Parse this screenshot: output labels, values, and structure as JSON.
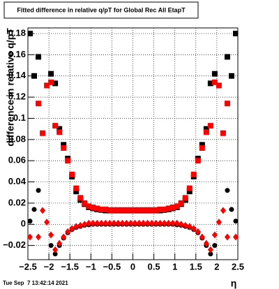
{
  "chart_data": {
    "type": "scatter",
    "title": "Fitted difference in relative q/pT for Global Rec All EtapT",
    "x_label": "η",
    "y_label": "difference in relative q/pT",
    "footer": "Tue Sep  7 13:42:14 2021",
    "x": [
      -2.45,
      -2.35,
      -2.25,
      -2.15,
      -2.05,
      -1.95,
      -1.85,
      -1.75,
      -1.65,
      -1.55,
      -1.45,
      -1.35,
      -1.25,
      -1.15,
      -1.05,
      -0.95,
      -0.85,
      -0.75,
      -0.65,
      -0.55,
      -0.45,
      -0.35,
      -0.25,
      -0.15,
      -0.05,
      0.05,
      0.15,
      0.25,
      0.35,
      0.45,
      0.55,
      0.65,
      0.75,
      0.85,
      0.95,
      1.05,
      1.15,
      1.25,
      1.35,
      1.45,
      1.55,
      1.65,
      1.75,
      1.85,
      1.95,
      2.05,
      2.15,
      2.25,
      2.35,
      2.45
    ],
    "series": [
      {
        "color": "#000000",
        "marker": "square",
        "values": [
          0.18,
          0.14,
          0.158,
          null,
          null,
          0.142,
          0.133,
          0.09,
          0.075,
          0.062,
          0.045,
          0.031,
          0.023,
          0.019,
          0.016,
          0.015,
          0.014,
          0.0135,
          0.013,
          0.013,
          0.013,
          0.013,
          0.013,
          0.013,
          0.013,
          0.013,
          0.013,
          0.013,
          0.013,
          0.013,
          0.013,
          0.013,
          0.0135,
          0.014,
          0.015,
          0.016,
          0.019,
          0.023,
          0.031,
          0.045,
          0.062,
          0.075,
          0.09,
          0.133,
          0.142,
          null,
          null,
          0.158,
          0.14,
          0.18
        ]
      },
      {
        "color": "#ff0000",
        "marker": "square",
        "values": [
          null,
          null,
          0.114,
          0.086,
          0.131,
          0.134,
          0.093,
          0.087,
          0.072,
          0.06,
          0.047,
          0.034,
          0.025,
          0.02,
          0.017,
          0.016,
          0.015,
          0.014,
          0.014,
          0.0135,
          0.0135,
          0.0135,
          0.0135,
          0.0135,
          0.0135,
          0.0135,
          0.0135,
          0.0135,
          0.0135,
          0.0135,
          0.0135,
          0.014,
          0.014,
          0.015,
          0.016,
          0.017,
          0.02,
          0.025,
          0.034,
          0.047,
          0.06,
          0.072,
          0.087,
          0.093,
          0.134,
          0.131,
          0.086,
          0.114,
          null,
          null
        ]
      },
      {
        "color": "#000000",
        "marker": "circle",
        "values": [
          0.003,
          0.014,
          0.032,
          null,
          null,
          -0.02,
          -0.028,
          -0.02,
          -0.013,
          -0.008,
          -0.005,
          -0.003,
          -0.002,
          -0.001,
          -0.0005,
          0,
          0,
          0,
          0,
          0,
          0,
          0,
          0,
          0,
          0,
          0,
          0,
          0,
          0,
          0,
          0,
          0,
          0,
          0,
          0,
          -0.0005,
          -0.001,
          -0.002,
          -0.003,
          -0.005,
          -0.008,
          -0.013,
          -0.02,
          -0.028,
          -0.02,
          null,
          null,
          0.032,
          0.014,
          0.003
        ]
      },
      {
        "color": "#ff0000",
        "marker": "diamond",
        "values": [
          -0.012,
          null,
          -0.012,
          0.013,
          0.002,
          -0.01,
          -0.024,
          -0.018,
          -0.012,
          -0.007,
          -0.004,
          -0.002,
          -0.001,
          0,
          0.001,
          0.001,
          0.001,
          0.001,
          0.001,
          0.001,
          0.001,
          0.001,
          0.001,
          0.001,
          0.001,
          0.001,
          0.001,
          0.001,
          0.001,
          0.001,
          0.001,
          0.001,
          0.001,
          0.001,
          0.001,
          0.001,
          0,
          -0.001,
          -0.002,
          -0.004,
          -0.007,
          -0.012,
          -0.018,
          -0.024,
          -0.01,
          0.002,
          0.013,
          -0.012,
          null,
          -0.012
        ]
      }
    ],
    "xlim": [
      -2.5,
      2.5
    ],
    "ylim": [
      -0.0334,
      0.1853
    ],
    "xticks": [
      {
        "value": -2.5,
        "label": "−2.5"
      },
      {
        "value": -2,
        "label": "−2"
      },
      {
        "value": -1.5,
        "label": "−1.5"
      },
      {
        "value": -1,
        "label": "−1"
      },
      {
        "value": -0.5,
        "label": "−0.5"
      },
      0,
      0.5,
      1,
      1.5,
      2,
      2.5
    ],
    "yticks": [
      {
        "value": -0.02,
        "label": "−0.02"
      },
      0,
      0.02,
      0.04,
      0.06,
      0.08,
      0.1,
      0.12,
      0.14,
      0.16,
      0.18
    ],
    "grid": true
  }
}
